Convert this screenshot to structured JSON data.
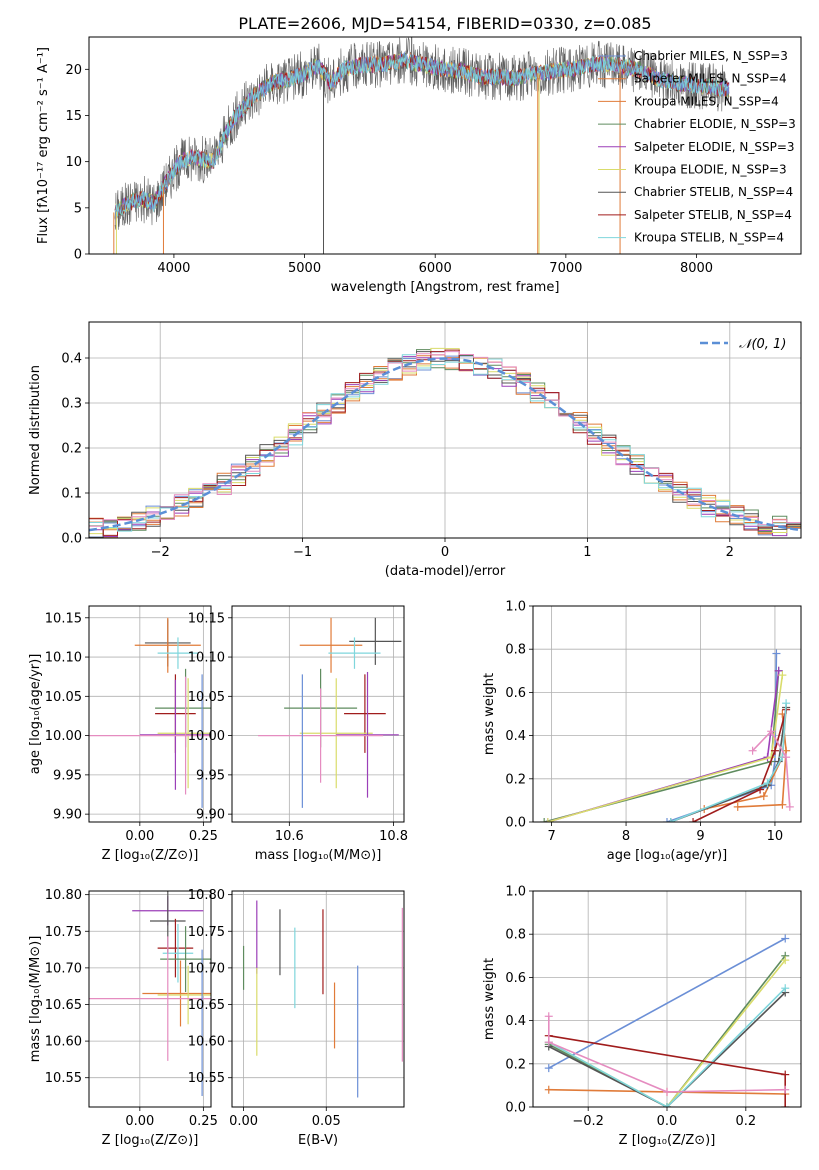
{
  "figure_title": "PLATE=2606, MJD=54154, FIBERID=0330, z=0.085",
  "colors": {
    "chabrier_miles": "#6b8fd6",
    "salpeter_miles": "#e07b39",
    "kroupa_miles": "#e07b39",
    "chabrier_elodie": "#5f8c5f",
    "salpeter_elodie": "#9b3fb8",
    "kroupa_elodie": "#d9dc6b",
    "chabrier_stelib": "#555555",
    "salpeter_stelib": "#a01c1c",
    "kroupa_stelib": "#7fd6dc",
    "pink": "#e58cc0",
    "normal_curve": "#5b8fd6",
    "grid": "#b0b0b0"
  },
  "chart_data": [
    {
      "id": "spectrum",
      "type": "line",
      "title": "PLATE=2606, MJD=54154, FIBERID=0330, z=0.085",
      "xlabel": "wavelength [Angstrom, rest frame]",
      "ylabel": "Flux [fλ10⁻¹⁷ erg cm⁻² s⁻¹ A⁻¹]",
      "xlim": [
        3350,
        8800
      ],
      "ylim": [
        0,
        23.5
      ],
      "xticks": [
        "4000",
        "5000",
        "6000",
        "7000",
        "8000"
      ],
      "yticks": [
        "0",
        "5",
        "10",
        "15",
        "20"
      ],
      "grid": false,
      "legend_position": "top-right",
      "legend": [
        {
          "label": "Chabrier MILES, N_SSP=3",
          "color_key": "chabrier_miles"
        },
        {
          "label": "Salpeter MILES, N_SSP=4",
          "color_key": "salpeter_miles"
        },
        {
          "label": "Kroupa MILES, N_SSP=4",
          "color_key": "kroupa_miles"
        },
        {
          "label": "Chabrier ELODIE, N_SSP=3",
          "color_key": "chabrier_elodie"
        },
        {
          "label": "Salpeter ELODIE, N_SSP=3",
          "color_key": "salpeter_elodie"
        },
        {
          "label": "Kroupa ELODIE, N_SSP=3",
          "color_key": "kroupa_elodie"
        },
        {
          "label": "Chabrier STELIB, N_SSP=4",
          "color_key": "chabrier_stelib"
        },
        {
          "label": "Salpeter STELIB, N_SSP=4",
          "color_key": "salpeter_stelib"
        },
        {
          "label": "Kroupa STELIB, N_SSP=4",
          "color_key": "kroupa_stelib"
        }
      ],
      "continuum": [
        [
          3550,
          4.5
        ],
        [
          3650,
          5.5
        ],
        [
          3750,
          6.0
        ],
        [
          3850,
          5.5
        ],
        [
          3950,
          8.0
        ],
        [
          4050,
          10.0
        ],
        [
          4150,
          10.5
        ],
        [
          4300,
          10.0
        ],
        [
          4450,
          14.5
        ],
        [
          4600,
          17.0
        ],
        [
          4750,
          18.5
        ],
        [
          4900,
          19.0
        ],
        [
          5000,
          19.5
        ],
        [
          5100,
          20.5
        ],
        [
          5200,
          18.5
        ],
        [
          5300,
          20.0
        ],
        [
          5450,
          20.5
        ],
        [
          5600,
          20.5
        ],
        [
          5750,
          21.0
        ],
        [
          5900,
          20.5
        ],
        [
          6050,
          20.0
        ],
        [
          6200,
          19.8
        ],
        [
          6350,
          19.2
        ],
        [
          6500,
          19.2
        ],
        [
          6600,
          19.0
        ],
        [
          6750,
          19.5
        ],
        [
          6900,
          19.8
        ],
        [
          7050,
          20.0
        ],
        [
          7200,
          20.5
        ],
        [
          7350,
          20.5
        ],
        [
          7550,
          20.0
        ],
        [
          7700,
          19.0
        ],
        [
          7850,
          18.5
        ],
        [
          8000,
          18.3
        ],
        [
          8150,
          18.0
        ],
        [
          8250,
          17.8
        ]
      ],
      "glitches": [
        {
          "x": 3540,
          "y": 0,
          "color_key": "salpeter_miles"
        },
        {
          "x": 3560,
          "y": 0,
          "color_key": "kroupa_elodie"
        },
        {
          "x": 3920,
          "y": 0,
          "color_key": "kroupa_miles"
        },
        {
          "x": 5145,
          "y": 0,
          "color_key": "chabrier_stelib"
        },
        {
          "x": 5820,
          "y": 23.5,
          "color_key": "chabrier_stelib"
        },
        {
          "x": 6785,
          "y": 0,
          "color_key": "salpeter_miles"
        },
        {
          "x": 6795,
          "y": 0,
          "color_key": "kroupa_elodie"
        },
        {
          "x": 7415,
          "y": 0,
          "color_key": "salpeter_miles"
        }
      ]
    },
    {
      "id": "residuals",
      "type": "bar",
      "xlabel": "(data-model)/error",
      "ylabel": "Normed distribution",
      "xlim": [
        -2.5,
        2.5
      ],
      "ylim": [
        0,
        0.48
      ],
      "xticks": [
        "−2",
        "−1",
        "0",
        "1",
        "2"
      ],
      "yticks": [
        "0.0",
        "0.1",
        "0.2",
        "0.3",
        "0.4"
      ],
      "grid": true,
      "legend_position": "top-right",
      "legend": [
        {
          "label": "𝒩(0, 1)",
          "color_key": "normal_curve"
        }
      ],
      "bin_width": 0.1,
      "series_color_keys": [
        "chabrier_miles",
        "salpeter_miles",
        "kroupa_miles",
        "chabrier_elodie",
        "salpeter_elodie",
        "kroupa_elodie",
        "chabrier_stelib",
        "salpeter_stelib",
        "kroupa_stelib",
        "pink"
      ],
      "normal_curve": {
        "mu": 0,
        "sigma": 1
      }
    },
    {
      "id": "age_vs_z",
      "type": "scatter",
      "xlabel": "Z [log₁₀(Z/Z⊙)]",
      "ylabel": "age  [log₁₀(age/yr)]",
      "xlim": [
        -0.2,
        0.28
      ],
      "ylim": [
        9.89,
        10.165
      ],
      "xticks": [
        "0.00",
        "0.25"
      ],
      "yticks": [
        "9.90",
        "9.95",
        "10.00",
        "10.05",
        "10.10",
        "10.15"
      ],
      "grid": true,
      "points": [
        {
          "x": 0.11,
          "y": 10.118,
          "xerr": 0.09,
          "yerr": 0.03,
          "color_key": "chabrier_stelib"
        },
        {
          "x": 0.11,
          "y": 10.115,
          "xerr": 0.13,
          "yerr": 0.035,
          "color_key": "salpeter_miles"
        },
        {
          "x": 0.15,
          "y": 10.105,
          "xerr": 0.08,
          "yerr": 0.02,
          "color_key": "kroupa_stelib"
        },
        {
          "x": 0.18,
          "y": 10.035,
          "xerr": 0.12,
          "yerr": 0.05,
          "color_key": "chabrier_elodie"
        },
        {
          "x": 0.14,
          "y": 10.028,
          "xerr": 0.08,
          "yerr": 0.05,
          "color_key": "salpeter_stelib"
        },
        {
          "x": 0.19,
          "y": 10.003,
          "xerr": 0.12,
          "yerr": 0.07,
          "color_key": "kroupa_elodie"
        },
        {
          "x": 0.14,
          "y": 10.001,
          "xerr": 0.14,
          "yerr": 0.07,
          "color_key": "salpeter_elodie"
        },
        {
          "x": 0.18,
          "y": 10.0,
          "xerr": 0.45,
          "yerr": 0.075,
          "color_key": "pink"
        },
        {
          "x": 0.245,
          "y": 9.993,
          "xerr": 0.0,
          "yerr": 0.085,
          "color_key": "chabrier_miles"
        }
      ]
    },
    {
      "id": "age_vs_mass",
      "type": "scatter",
      "xlabel": "mass [log₁₀(M/M⊙)]",
      "ylabel": "",
      "xlim": [
        10.49,
        10.82
      ],
      "ylim": [
        9.89,
        10.165
      ],
      "xticks": [
        "10.6",
        "10.8"
      ],
      "yticks": [
        "9.90",
        "9.95",
        "10.00",
        "10.05",
        "10.10",
        "10.15"
      ],
      "grid": true,
      "points": [
        {
          "x": 10.765,
          "y": 10.12,
          "xerr": 0.05,
          "yerr": 0.03,
          "color_key": "chabrier_stelib"
        },
        {
          "x": 10.68,
          "y": 10.115,
          "xerr": 0.06,
          "yerr": 0.035,
          "color_key": "salpeter_miles"
        },
        {
          "x": 10.725,
          "y": 10.105,
          "xerr": 0.05,
          "yerr": 0.02,
          "color_key": "kroupa_stelib"
        },
        {
          "x": 10.66,
          "y": 10.035,
          "xerr": 0.07,
          "yerr": 0.05,
          "color_key": "chabrier_elodie"
        },
        {
          "x": 10.745,
          "y": 10.028,
          "xerr": 0.04,
          "yerr": 0.05,
          "color_key": "salpeter_stelib"
        },
        {
          "x": 10.69,
          "y": 10.003,
          "xerr": 0.07,
          "yerr": 0.07,
          "color_key": "kroupa_elodie"
        },
        {
          "x": 10.75,
          "y": 10.001,
          "xerr": 0.06,
          "yerr": 0.08,
          "color_key": "salpeter_elodie"
        },
        {
          "x": 10.66,
          "y": 10.0,
          "xerr": 0.12,
          "yerr": 0.06,
          "color_key": "pink"
        },
        {
          "x": 10.625,
          "y": 9.993,
          "xerr": 0.0,
          "yerr": 0.085,
          "color_key": "chabrier_miles"
        }
      ]
    },
    {
      "id": "weight_vs_age",
      "type": "line",
      "xlabel": "age  [log₁₀(age/yr)]",
      "ylabel": "mass weight",
      "xlim": [
        6.75,
        10.35
      ],
      "ylim": [
        0,
        1
      ],
      "xticks": [
        "7",
        "8",
        "9",
        "10"
      ],
      "yticks": [
        "0.0",
        "0.2",
        "0.4",
        "0.6",
        "0.8",
        "1.0"
      ],
      "grid": true,
      "series": [
        {
          "color_key": "chabrier_miles",
          "x": [
            8.55,
            9.95,
            10.0,
            10.02
          ],
          "y": [
            0.0,
            0.17,
            0.28,
            0.78
          ]
        },
        {
          "color_key": "salpeter_miles",
          "x": [
            9.05,
            9.85,
            10.1,
            10.15
          ],
          "y": [
            0.06,
            0.12,
            0.3,
            0.53
          ]
        },
        {
          "color_key": "kroupa_miles",
          "x": [
            9.5,
            10.1,
            10.15,
            10.1
          ],
          "y": [
            0.07,
            0.08,
            0.33,
            0.5
          ]
        },
        {
          "color_key": "chabrier_elodie",
          "x": [
            6.9,
            9.95,
            10.05
          ],
          "y": [
            0.0,
            0.28,
            0.7
          ]
        },
        {
          "color_key": "salpeter_elodie",
          "x": [
            6.95,
            9.9,
            10.05
          ],
          "y": [
            0.0,
            0.3,
            0.7
          ]
        },
        {
          "color_key": "kroupa_elodie",
          "x": [
            6.95,
            9.95,
            10.1
          ],
          "y": [
            0.0,
            0.3,
            0.68
          ]
        },
        {
          "color_key": "chabrier_stelib",
          "x": [
            8.6,
            9.9,
            10.05,
            10.15
          ],
          "y": [
            0.0,
            0.17,
            0.28,
            0.53
          ]
        },
        {
          "color_key": "salpeter_stelib",
          "x": [
            8.9,
            9.8,
            10.0,
            10.15
          ],
          "y": [
            0.0,
            0.15,
            0.33,
            0.52
          ]
        },
        {
          "color_key": "kroupa_stelib",
          "x": [
            8.6,
            9.9,
            10.1,
            10.15
          ],
          "y": [
            0.0,
            0.18,
            0.3,
            0.55
          ]
        },
        {
          "color_key": "pink",
          "x": [
            9.7,
            9.95,
            10.15,
            10.2
          ],
          "y": [
            0.33,
            0.42,
            0.3,
            0.07
          ]
        }
      ]
    },
    {
      "id": "mass_vs_z",
      "type": "scatter",
      "xlabel": "Z [log₁₀(Z/Z⊙)]",
      "ylabel": "mass [log₁₀(M/M⊙)]",
      "xlim": [
        -0.2,
        0.28
      ],
      "ylim": [
        10.51,
        10.805
      ],
      "xticks": [
        "0.00",
        "0.25"
      ],
      "yticks": [
        "10.55",
        "10.60",
        "10.65",
        "10.70",
        "10.75",
        "10.80"
      ],
      "grid": true,
      "points": [
        {
          "x": 0.11,
          "y": 10.778,
          "xerr": 0.14,
          "yerr": 0.02,
          "color_key": "salpeter_elodie"
        },
        {
          "x": 0.11,
          "y": 10.764,
          "xerr": 0.07,
          "yerr": 0.045,
          "color_key": "chabrier_stelib"
        },
        {
          "x": 0.14,
          "y": 10.727,
          "xerr": 0.07,
          "yerr": 0.04,
          "color_key": "salpeter_stelib"
        },
        {
          "x": 0.15,
          "y": 10.72,
          "xerr": 0.06,
          "yerr": 0.04,
          "color_key": "kroupa_stelib"
        },
        {
          "x": 0.18,
          "y": 10.712,
          "xerr": 0.1,
          "yerr": 0.045,
          "color_key": "chabrier_elodie"
        },
        {
          "x": 0.16,
          "y": 10.665,
          "xerr": 0.15,
          "yerr": 0.045,
          "color_key": "salpeter_miles"
        },
        {
          "x": 0.19,
          "y": 10.663,
          "xerr": 0.12,
          "yerr": 0.04,
          "color_key": "kroupa_elodie"
        },
        {
          "x": 0.11,
          "y": 10.658,
          "xerr": 0.42,
          "yerr": 0.085,
          "color_key": "pink"
        },
        {
          "x": 0.245,
          "y": 10.625,
          "xerr": 0.0,
          "yerr": 0.1,
          "color_key": "chabrier_miles"
        }
      ]
    },
    {
      "id": "mass_vs_ebv",
      "type": "scatter",
      "xlabel": "E(B-V)",
      "ylabel": "",
      "xlim": [
        -0.007,
        0.097
      ],
      "ylim": [
        10.51,
        10.805
      ],
      "xticks": [
        "0.00",
        "0.05"
      ],
      "yticks": [
        "10.55",
        "10.60",
        "10.65",
        "10.70",
        "10.75",
        "10.80"
      ],
      "grid": true,
      "points": [
        {
          "x": 0.0,
          "y": 10.7,
          "xerr": 0.0,
          "yerr": 0.03,
          "color_key": "chabrier_elodie"
        },
        {
          "x": 0.008,
          "y": 10.742,
          "xerr": 0.0,
          "yerr": 0.05,
          "color_key": "salpeter_elodie"
        },
        {
          "x": 0.008,
          "y": 10.64,
          "xerr": 0.0,
          "yerr": 0.06,
          "color_key": "kroupa_elodie"
        },
        {
          "x": 0.022,
          "y": 10.735,
          "xerr": 0.0,
          "yerr": 0.045,
          "color_key": "chabrier_stelib"
        },
        {
          "x": 0.031,
          "y": 10.7,
          "xerr": 0.0,
          "yerr": 0.055,
          "color_key": "kroupa_stelib"
        },
        {
          "x": 0.048,
          "y": 10.722,
          "xerr": 0.0,
          "yerr": 0.058,
          "color_key": "salpeter_stelib"
        },
        {
          "x": 0.055,
          "y": 10.635,
          "xerr": 0.0,
          "yerr": 0.045,
          "color_key": "salpeter_miles"
        },
        {
          "x": 0.069,
          "y": 10.613,
          "xerr": 0.0,
          "yerr": 0.09,
          "color_key": "chabrier_miles"
        },
        {
          "x": 0.096,
          "y": 10.677,
          "xerr": 0.0,
          "yerr": 0.105,
          "color_key": "pink"
        }
      ]
    },
    {
      "id": "weight_vs_z",
      "type": "line",
      "xlabel": "Z [log₁₀(Z/Z⊙)]",
      "ylabel": "mass weight",
      "xlim": [
        -0.34,
        0.34
      ],
      "ylim": [
        0,
        1
      ],
      "xticks": [
        "−0.2",
        "0.0",
        "0.2"
      ],
      "yticks": [
        "0.0",
        "0.2",
        "0.4",
        "0.6",
        "0.8",
        "1.0"
      ],
      "grid": true,
      "series": [
        {
          "color_key": "chabrier_miles",
          "x": [
            -0.3,
            0.3
          ],
          "y": [
            0.18,
            0.78
          ]
        },
        {
          "color_key": "salpeter_miles",
          "x": [
            -0.3,
            0.0,
            0.3
          ],
          "y": [
            0.08,
            0.07,
            0.06
          ]
        },
        {
          "color_key": "chabrier_elodie",
          "x": [
            -0.3,
            0.0,
            0.3
          ],
          "y": [
            0.29,
            0.0,
            0.7
          ]
        },
        {
          "color_key": "kroupa_elodie",
          "x": [
            -0.3,
            0.0,
            0.3
          ],
          "y": [
            0.3,
            0.0,
            0.68
          ]
        },
        {
          "color_key": "chabrier_stelib",
          "x": [
            -0.3,
            0.0,
            0.3
          ],
          "y": [
            0.28,
            0.0,
            0.53
          ]
        },
        {
          "color_key": "kroupa_stelib",
          "x": [
            -0.3,
            0.0,
            0.3
          ],
          "y": [
            0.3,
            0.0,
            0.55
          ]
        },
        {
          "color_key": "salpeter_stelib",
          "x": [
            -0.3,
            0.3,
            0.3
          ],
          "y": [
            0.33,
            0.15,
            0.0
          ]
        },
        {
          "color_key": "pink",
          "x": [
            -0.3,
            -0.3,
            0.0,
            0.3
          ],
          "y": [
            0.42,
            0.3,
            0.07,
            0.08
          ]
        }
      ]
    }
  ]
}
